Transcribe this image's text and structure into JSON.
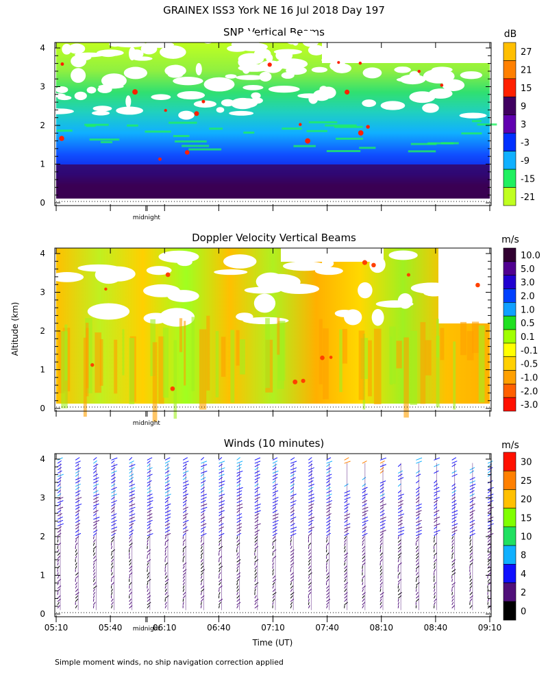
{
  "main_title": "GRAINEX ISS3 York NE  16 Jul 2018 Day 197",
  "ylabel": "Altitude (km)",
  "xlabel": "Time (UT)",
  "midnight_label": "midnight",
  "footnote": "Simple moment winds, no ship navigation correction applied",
  "time_ticks": [
    "05:10",
    "05:40",
    "06:10",
    "06:40",
    "07:10",
    "07:40",
    "08:10",
    "08:40",
    "09:10"
  ],
  "alt_ticks": [
    "0",
    "1",
    "2",
    "3",
    "4"
  ],
  "chart_data": [
    {
      "type": "heatmap",
      "title": "SNR Vertical Beams",
      "colorbar_unit": "dB",
      "colorbar_levels": [
        "27",
        "21",
        "15",
        "9",
        "3",
        "-3",
        "-9",
        "-15",
        "-21"
      ],
      "colorbar_colors": [
        "#ffbf00",
        "#ff8000",
        "#ff2000",
        "#400060",
        "#6000b0",
        "#0030ff",
        "#10b0ff",
        "#20f060",
        "#c0ff20"
      ],
      "x_range": [
        "05:10",
        "09:10"
      ],
      "y_range": [
        0,
        4
      ],
      "y_unit": "km"
    },
    {
      "type": "heatmap",
      "title": "Doppler Velocity Vertical Beams",
      "colorbar_unit": "m/s",
      "colorbar_levels": [
        "10.0",
        "5.0",
        "3.0",
        "2.0",
        "1.0",
        "0.5",
        "0.1",
        "-0.1",
        "-0.5",
        "-1.0",
        "-2.0",
        "-3.0"
      ],
      "colorbar_colors": [
        "#300030",
        "#500090",
        "#2000d0",
        "#0040ff",
        "#10a0ff",
        "#20e020",
        "#a0ff00",
        "#ffff00",
        "#ffd000",
        "#ffa000",
        "#ff6000",
        "#ff1000"
      ],
      "x_range": [
        "05:10",
        "09:10"
      ],
      "y_range": [
        0,
        4
      ],
      "y_unit": "km"
    },
    {
      "type": "wind_barbs",
      "title": "Winds (10 minutes)",
      "colorbar_unit": "m/s",
      "colorbar_levels": [
        "30",
        "25",
        "20",
        "15",
        "10",
        "8",
        "4",
        "2",
        "0"
      ],
      "colorbar_colors": [
        "#ff1000",
        "#ff8000",
        "#ffc000",
        "#80ff00",
        "#20e060",
        "#10b0ff",
        "#1010ff",
        "#50107a",
        "#000000"
      ],
      "x": [
        "05:10",
        "05:20",
        "05:30",
        "05:40",
        "05:50",
        "06:00",
        "06:10",
        "06:20",
        "06:30",
        "06:40",
        "06:50",
        "07:00",
        "07:10",
        "07:20",
        "07:30",
        "07:40",
        "07:50",
        "08:00",
        "08:10",
        "08:20",
        "08:30",
        "08:40",
        "08:50",
        "09:00",
        "09:10"
      ],
      "x_range": [
        "05:10",
        "09:10"
      ],
      "y_range": [
        0,
        4
      ],
      "y_unit": "km"
    }
  ]
}
